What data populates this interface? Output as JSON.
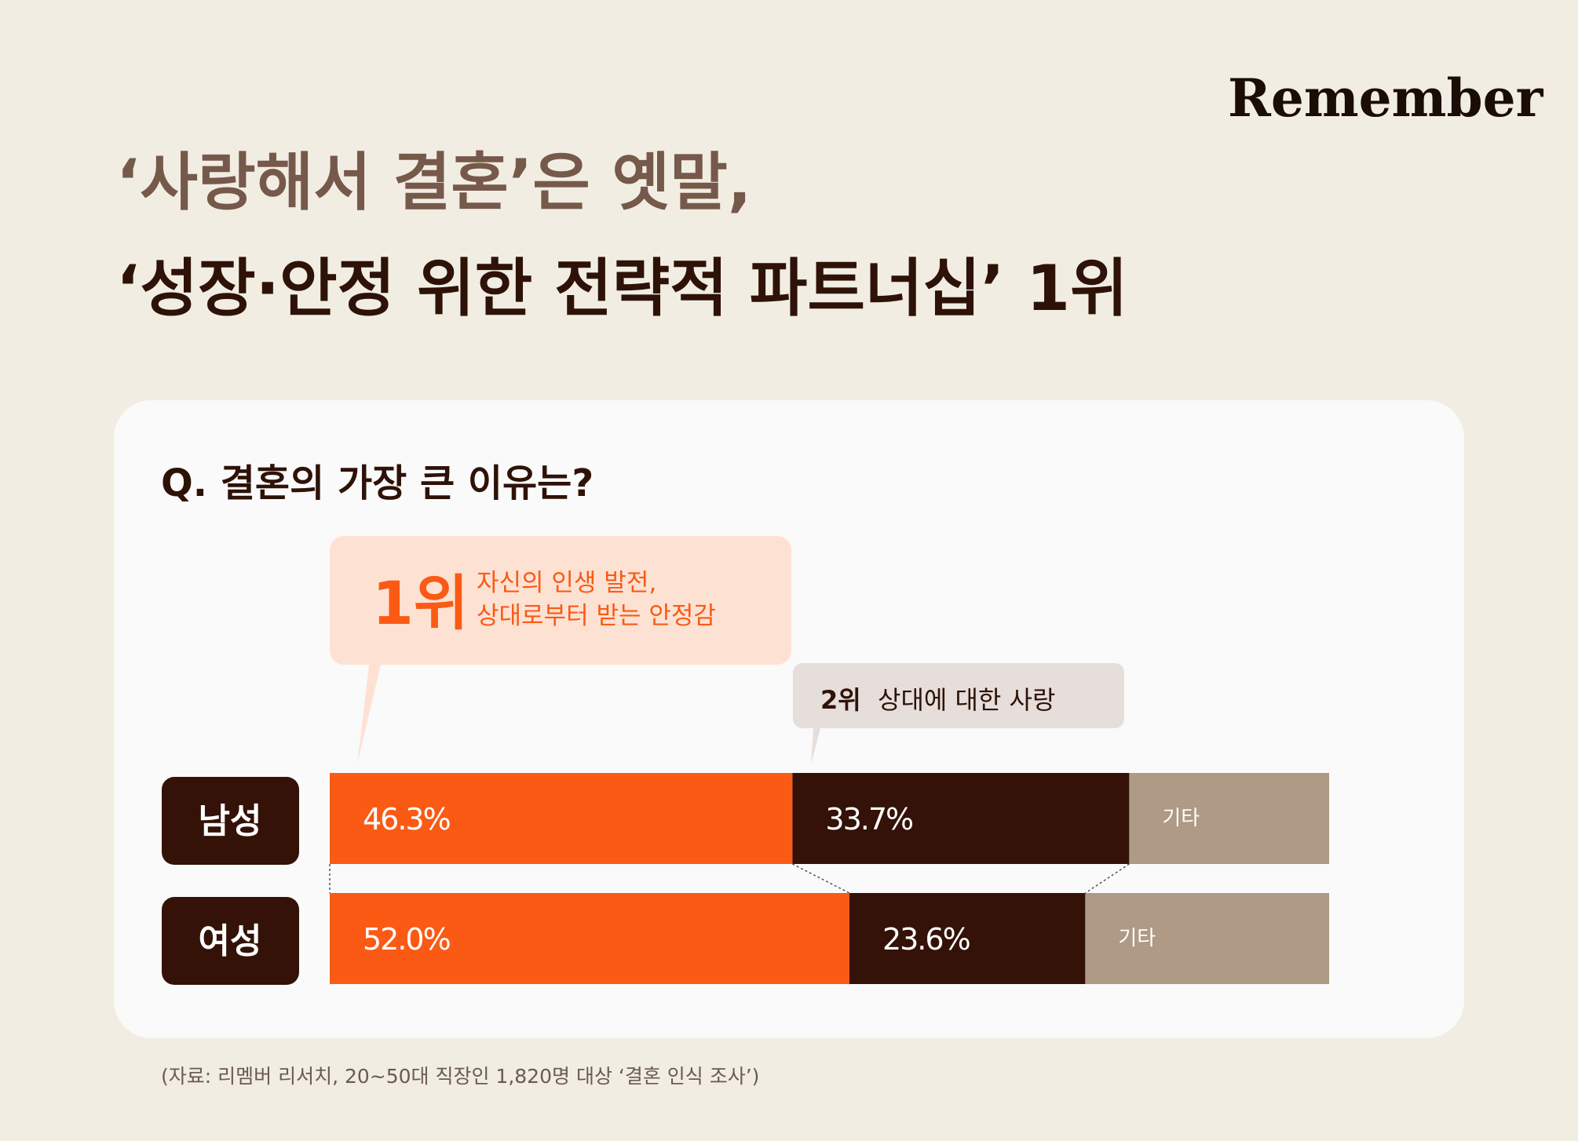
{
  "brand": "Remember",
  "chart_data": {
    "type": "stacked-barh",
    "title": [
      "‘사랑해서 결혼’은 옛말,",
      "‘성장·안정 위한 전략적 파트너십’ 1위"
    ],
    "subtitle": "Q. 결혼의 가장 큰 이유는?",
    "categories": [
      "남성",
      "여성"
    ],
    "xlim": [
      0,
      100
    ],
    "series": [
      {
        "rank": "1위",
        "name": "자신의 인생 발전,\n상대로부터 받는 안정감",
        "color": "#fa5a14",
        "values": [
          46.3,
          52.0
        ],
        "value_labels": [
          "46.3%",
          "52.0%"
        ]
      },
      {
        "rank": "2위",
        "name": "상대에 대한 사랑",
        "color": "#341208",
        "values": [
          33.7,
          23.6
        ],
        "value_labels": [
          "33.7%",
          "23.6%"
        ]
      },
      {
        "name": "기타",
        "color": "#ae9a85",
        "values": [
          20.0,
          24.4
        ]
      }
    ],
    "source": "(자료: 리멤버 리서치, 20~50대 직장인 1,820명 대상 ‘결혼 인식 조사’)"
  }
}
